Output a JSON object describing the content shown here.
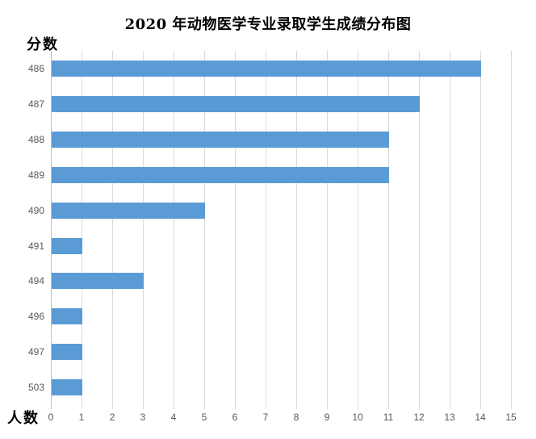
{
  "chart_data": {
    "type": "bar",
    "orientation": "horizontal",
    "title": "2020 年动物医学专业录取学生成绩分布图",
    "categories": [
      "486",
      "487",
      "488",
      "489",
      "490",
      "491",
      "494",
      "496",
      "497",
      "503"
    ],
    "values": [
      14,
      12,
      11,
      11,
      5,
      1,
      3,
      1,
      1,
      1
    ],
    "xlabel": "人数",
    "ylabel": "分数",
    "xlim": [
      0,
      15
    ],
    "x_ticks": [
      0,
      1,
      2,
      3,
      4,
      5,
      6,
      7,
      8,
      9,
      10,
      11,
      12,
      13,
      14,
      15
    ],
    "grid": true,
    "legend": false
  },
  "colors": {
    "bar": "#5B9BD5",
    "gridline": "#D9D9D9",
    "axis_line": "#BFBFBF",
    "tick_label": "#595959",
    "title_text": "#000000"
  }
}
